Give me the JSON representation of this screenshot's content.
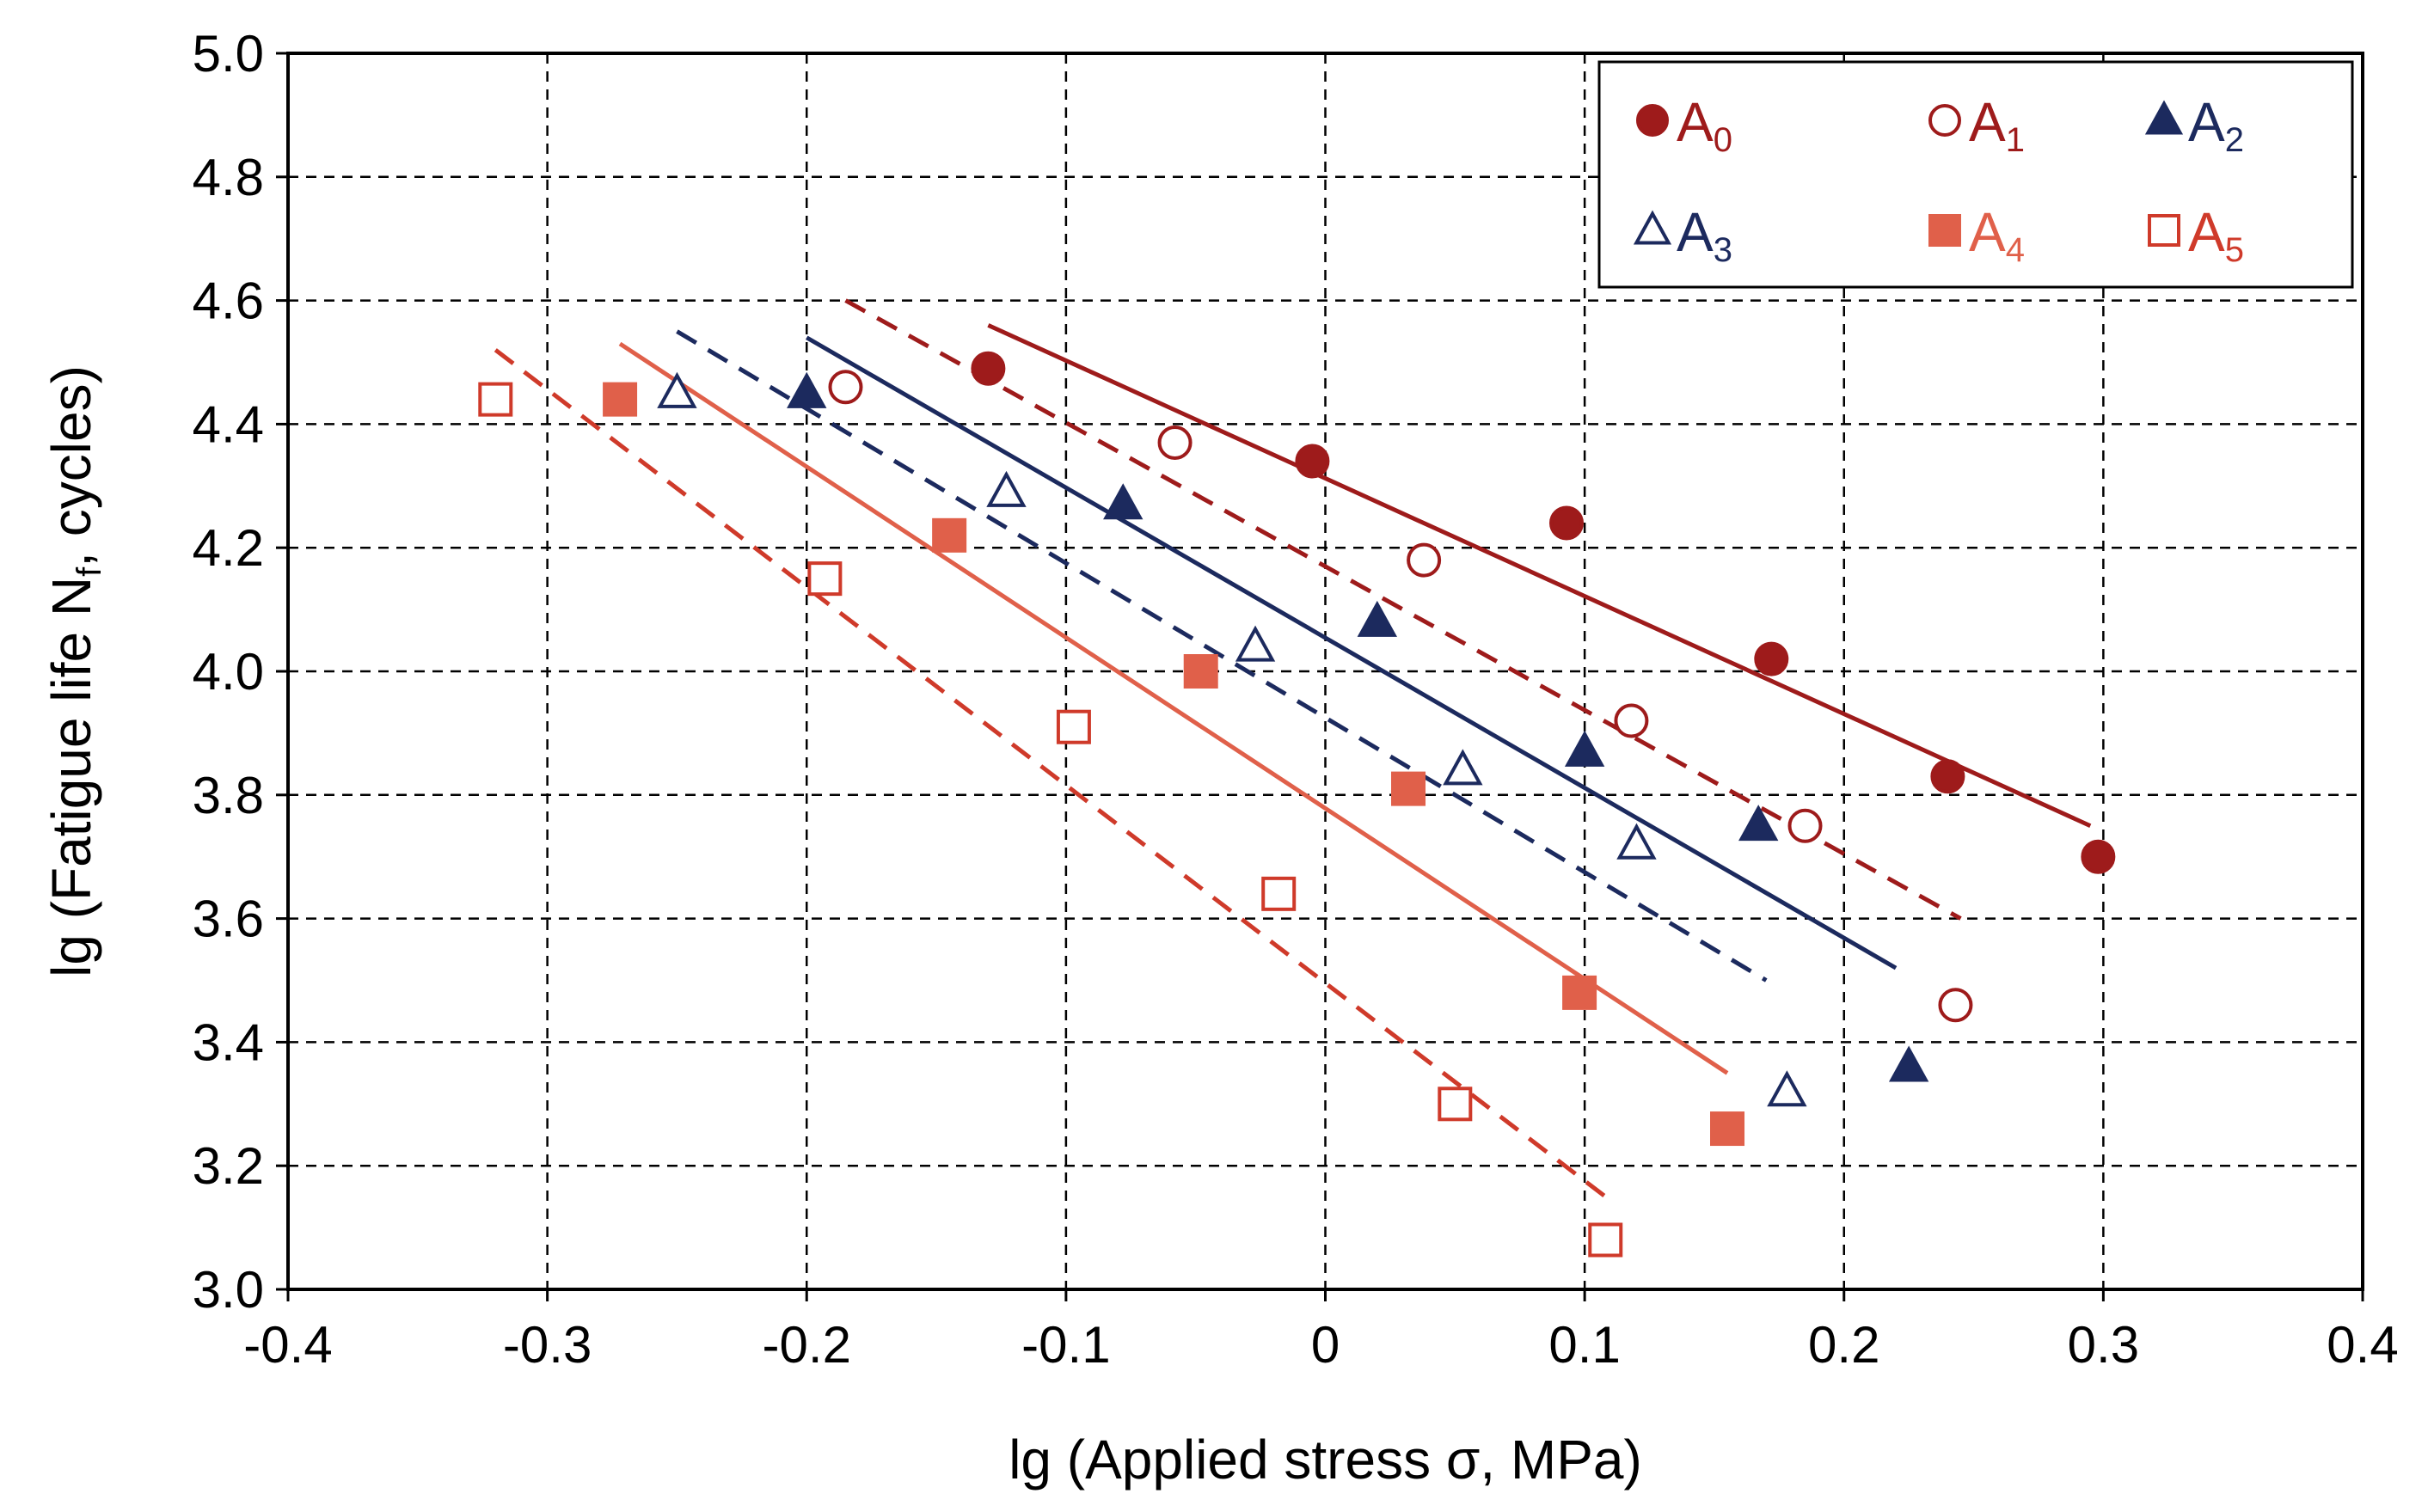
{
  "chart_data": {
    "type": "scatter",
    "title": "",
    "xlabel": "lg (Applied stress σ, MPa)",
    "ylabel_main": "lg (Fatigue life N",
    "ylabel_sub": "f",
    "ylabel_tail": ", cycles)",
    "xlim": [
      -0.4,
      0.4
    ],
    "ylim": [
      3.0,
      5.0
    ],
    "xticks": [
      -0.4,
      -0.3,
      -0.2,
      -0.1,
      0,
      0.1,
      0.2,
      0.3,
      0.4
    ],
    "xtick_labels": [
      "-0.4",
      "-0.3",
      "-0.2",
      "-0.1",
      "0",
      "0.1",
      "0.2",
      "0.3",
      "0.4"
    ],
    "yticks": [
      3.0,
      3.2,
      3.4,
      3.6,
      3.8,
      4.0,
      4.2,
      4.4,
      4.6,
      4.8,
      5.0
    ],
    "ytick_labels": [
      "3.0",
      "3.2",
      "3.4",
      "3.6",
      "3.8",
      "4.0",
      "4.2",
      "4.4",
      "4.6",
      "4.8",
      "5.0"
    ],
    "grid": true,
    "legend_position": "top-right",
    "series": [
      {
        "name": "A",
        "sub": "0",
        "marker": "circle-filled",
        "color": "#9e1b1b",
        "line": "solid",
        "x": [
          -0.13,
          -0.005,
          0.093,
          0.172,
          0.24,
          0.298
        ],
        "y": [
          4.49,
          4.34,
          4.24,
          4.02,
          3.83,
          3.7
        ],
        "fit": [
          [
            -0.13,
            4.56
          ],
          [
            0.295,
            3.75
          ]
        ]
      },
      {
        "name": "A",
        "sub": "1",
        "marker": "circle-open",
        "color": "#9e1b1b",
        "line": "dashed",
        "x": [
          -0.185,
          -0.058,
          0.038,
          0.118,
          0.185,
          0.243
        ],
        "y": [
          4.46,
          4.37,
          4.18,
          3.92,
          3.75,
          3.46
        ],
        "fit": [
          [
            -0.185,
            4.6
          ],
          [
            0.245,
            3.6
          ]
        ]
      },
      {
        "name": "A",
        "sub": "2",
        "marker": "triangle-filled",
        "color": "#1c2a5e",
        "line": "solid",
        "x": [
          -0.2,
          -0.078,
          0.02,
          0.1,
          0.167,
          0.225
        ],
        "y": [
          4.45,
          4.27,
          4.08,
          3.87,
          3.75,
          3.36
        ],
        "fit": [
          [
            -0.2,
            4.54
          ],
          [
            0.22,
            3.52
          ]
        ]
      },
      {
        "name": "A",
        "sub": "3",
        "marker": "triangle-open",
        "color": "#1c2a5e",
        "line": "dashed",
        "x": [
          -0.25,
          -0.123,
          -0.027,
          0.053,
          0.12,
          0.178
        ],
        "y": [
          4.45,
          4.29,
          4.04,
          3.84,
          3.72,
          3.32
        ],
        "fit": [
          [
            -0.25,
            4.55
          ],
          [
            0.17,
            3.5
          ]
        ]
      },
      {
        "name": "A",
        "sub": "4",
        "marker": "square-filled",
        "color": "#e0604a",
        "line": "solid",
        "x": [
          -0.272,
          -0.145,
          -0.048,
          0.032,
          0.098,
          0.155
        ],
        "y": [
          4.44,
          4.22,
          4.0,
          3.81,
          3.48,
          3.26
        ],
        "fit": [
          [
            -0.272,
            4.53
          ],
          [
            0.155,
            3.35
          ]
        ]
      },
      {
        "name": "A",
        "sub": "5",
        "marker": "square-open",
        "color": "#cf3a2a",
        "line": "dashed",
        "x": [
          -0.32,
          -0.193,
          -0.097,
          -0.018,
          0.05,
          0.108
        ],
        "y": [
          4.44,
          4.15,
          3.91,
          3.64,
          3.3,
          3.08
        ],
        "fit": [
          [
            -0.32,
            4.52
          ],
          [
            0.108,
            3.15
          ]
        ]
      }
    ]
  },
  "colors": {
    "dark_red": "#9e1b1b",
    "navy": "#1c2a5e",
    "salmon": "#e0604a",
    "red_open": "#cf3a2a",
    "grid": "#000000"
  }
}
